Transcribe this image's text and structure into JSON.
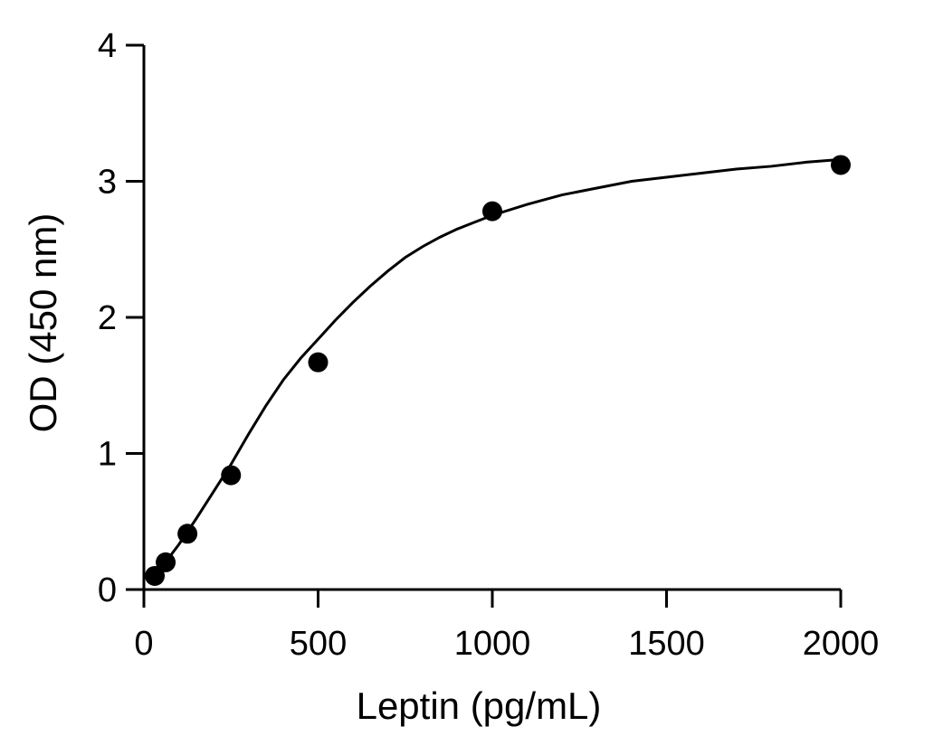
{
  "chart_data": {
    "type": "scatter",
    "title": "",
    "xlabel": "Leptin (pg/mL)",
    "ylabel": "OD (450 nm)",
    "xlim": [
      0,
      2000
    ],
    "ylim": [
      0,
      4
    ],
    "xticks": [
      0,
      500,
      1000,
      1500,
      2000
    ],
    "yticks": [
      0,
      1,
      2,
      3,
      4
    ],
    "x_tick_labels": [
      "0",
      "500",
      "1000",
      "1500",
      "2000"
    ],
    "y_tick_labels": [
      "0",
      "1",
      "2",
      "3",
      "4"
    ],
    "grid": false,
    "legend": "none",
    "series": [
      {
        "x": [
          31.25,
          62.5,
          125,
          250,
          500,
          1000,
          2000
        ],
        "y": [
          0.1,
          0.2,
          0.41,
          0.84,
          1.67,
          2.78,
          3.12
        ],
        "color": "#000000",
        "marker": "circle"
      }
    ],
    "fit_curve": {
      "type": "4PL",
      "color": "#000000",
      "x": [
        20,
        50,
        100,
        150,
        200,
        250,
        300,
        350,
        400,
        450,
        500,
        550,
        600,
        650,
        700,
        750,
        800,
        850,
        900,
        950,
        1000,
        1100,
        1200,
        1300,
        1400,
        1500,
        1600,
        1700,
        1800,
        1900,
        2000
      ],
      "y": [
        0.07,
        0.16,
        0.33,
        0.52,
        0.72,
        0.92,
        1.14,
        1.35,
        1.54,
        1.7,
        1.84,
        1.98,
        2.11,
        2.23,
        2.34,
        2.44,
        2.52,
        2.59,
        2.65,
        2.7,
        2.75,
        2.83,
        2.9,
        2.95,
        3.0,
        3.03,
        3.06,
        3.09,
        3.11,
        3.14,
        3.16
      ]
    }
  }
}
